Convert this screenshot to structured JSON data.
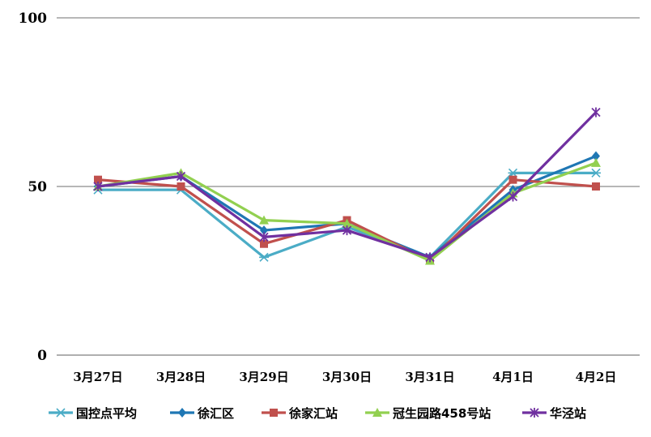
{
  "chart_data": {
    "type": "line",
    "title": "",
    "xlabel": "",
    "ylabel": "",
    "categories": [
      "3月27日",
      "3月28日",
      "3月29日",
      "3月30日",
      "3月31日",
      "4月1日",
      "4月2日"
    ],
    "ylim": [
      0,
      100
    ],
    "yticks": [
      0,
      50,
      100
    ],
    "grid": "horizontal",
    "legend_position": "bottom",
    "series": [
      {
        "name": "国控点平均",
        "color": "#4BACC6",
        "marker": "star",
        "values": [
          49,
          49,
          29,
          38,
          29,
          54,
          54
        ]
      },
      {
        "name": "徐汇区",
        "color": "#1F77B4",
        "marker": "diamond",
        "values": [
          50,
          53,
          37,
          39,
          29,
          49,
          59
        ]
      },
      {
        "name": "徐家汇站",
        "color": "#C0504D",
        "marker": "square",
        "values": [
          52,
          50,
          33,
          40,
          28,
          52,
          50
        ]
      },
      {
        "name": "冠生园路458号站",
        "color": "#92D050",
        "marker": "triangle",
        "values": [
          50,
          54,
          40,
          39,
          28,
          48,
          57
        ]
      },
      {
        "name": "华泾站",
        "color": "#7030A0",
        "marker": "cross",
        "values": [
          50,
          53,
          35,
          37,
          29,
          47,
          72
        ]
      }
    ]
  }
}
